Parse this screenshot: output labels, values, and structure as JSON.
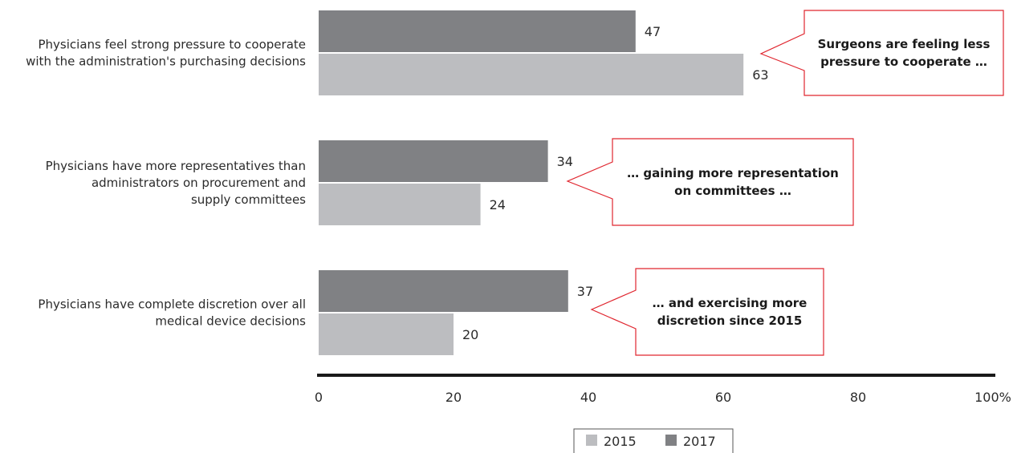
{
  "colors": {
    "series_2015": "#bcbdc0",
    "series_2017": "#808184",
    "axis": "#1a1a1a",
    "callout_border": "#e0262f"
  },
  "chart_data": {
    "type": "bar",
    "orientation": "horizontal",
    "categories": [
      [
        "Physicians feel strong pressure to cooperate",
        "with the administration's purchasing decisions"
      ],
      [
        "Physicians have more representatives than",
        "administrators on procurement and",
        "supply committees"
      ],
      [
        "Physicians have complete discretion over all",
        "medical device decisions"
      ]
    ],
    "series": [
      {
        "name": "2017",
        "values": [
          47,
          34,
          37
        ],
        "color": "#808184"
      },
      {
        "name": "2015",
        "values": [
          63,
          24,
          20
        ],
        "color": "#bcbdc0"
      }
    ],
    "xlim": [
      0,
      100
    ],
    "xticks": [
      0,
      20,
      40,
      60,
      80,
      100
    ],
    "xtick_labels": [
      "0",
      "20",
      "40",
      "60",
      "80",
      "100%"
    ],
    "grid": false,
    "legend": {
      "position": "bottom-center",
      "entries": [
        "2015",
        "2017"
      ]
    },
    "callouts": [
      {
        "category_index": 0,
        "lines": [
          "Surgeons are feeling less",
          "pressure to cooperate …"
        ]
      },
      {
        "category_index": 1,
        "lines": [
          "… gaining more representation",
          "on committees …"
        ]
      },
      {
        "category_index": 2,
        "lines": [
          "… and exercising more",
          "discretion since 2015"
        ]
      }
    ]
  }
}
